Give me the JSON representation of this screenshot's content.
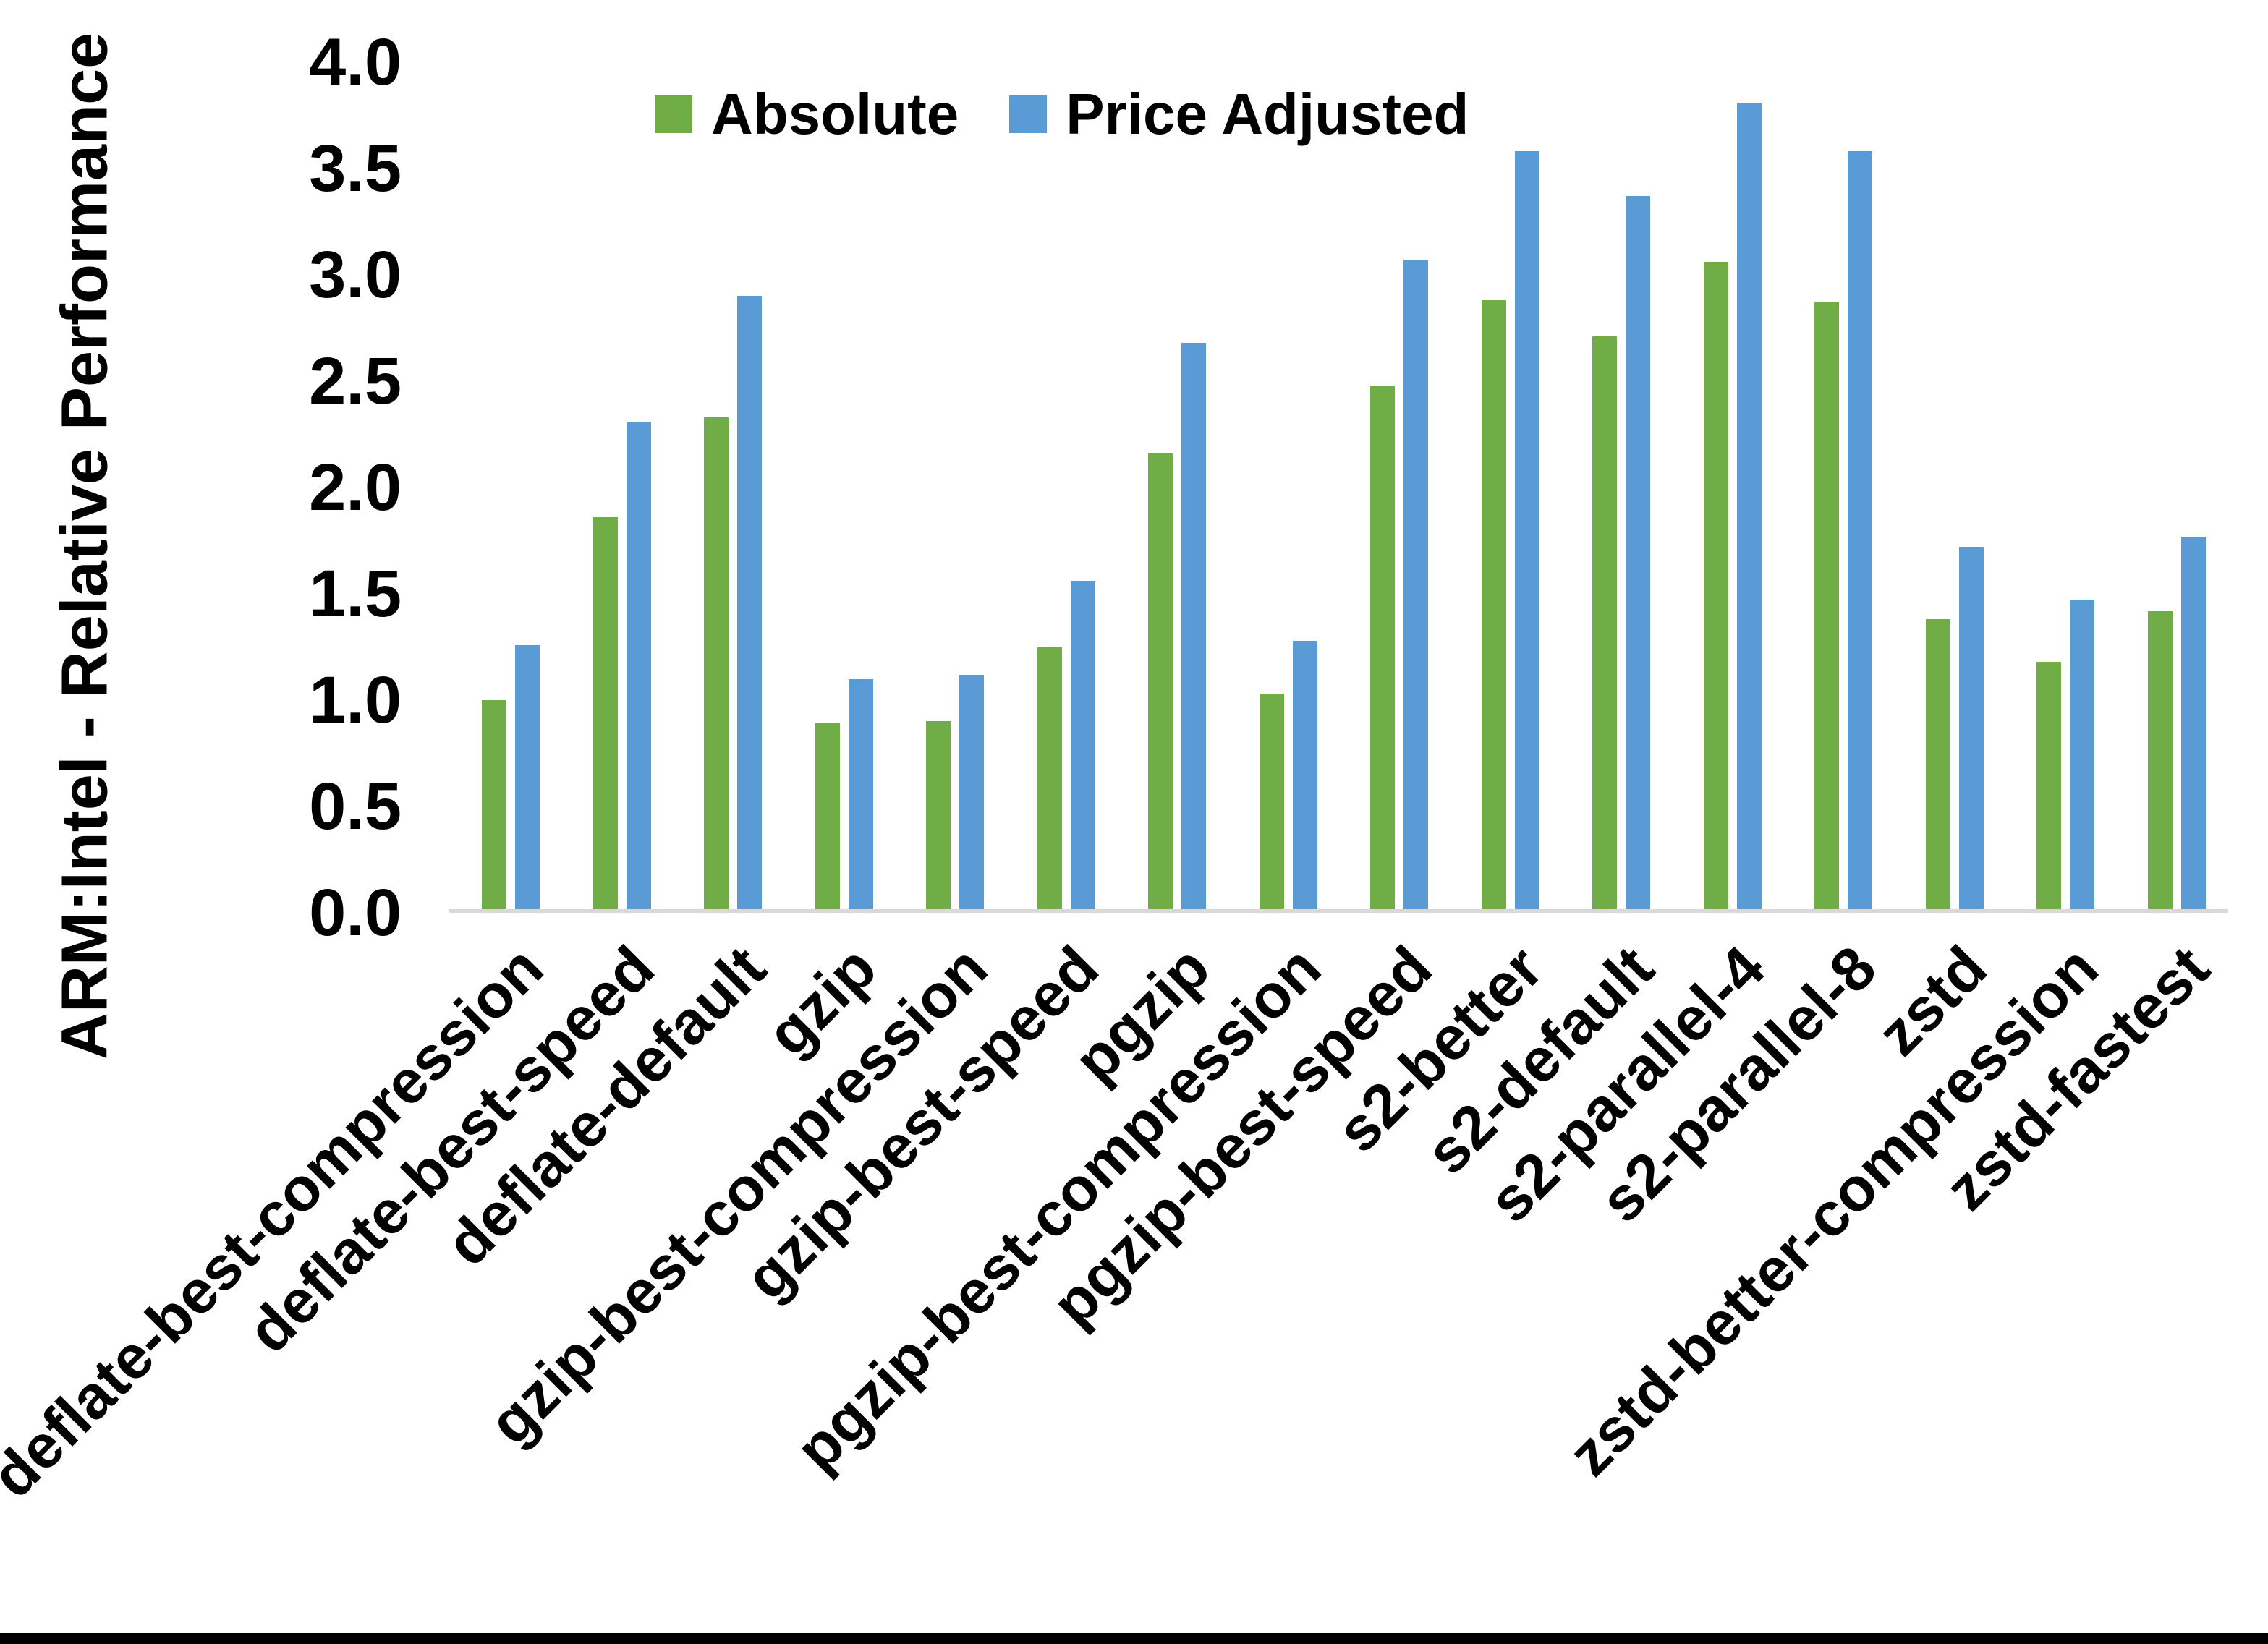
{
  "chart_data": {
    "type": "bar",
    "title": "",
    "xlabel": "",
    "ylabel": "ARM:Intel - Relative Performance",
    "ylim": [
      0,
      4
    ],
    "y_tick_step": 0.5,
    "y_ticks": [
      "4.0",
      "3.5",
      "3.0",
      "2.5",
      "2.0",
      "1.5",
      "1.0",
      "0.5",
      "0.0"
    ],
    "grid": "off",
    "legend_position": "top-center",
    "categories": [
      "deflate-best-compression",
      "deflate-best-speed",
      "deflate-default",
      "gzip",
      "gzip-best-compression",
      "gzip-best-speed",
      "pgzip",
      "pgzip-best-compression",
      "pgzip-best-speed",
      "s2-better",
      "s2-default",
      "s2-parallel-4",
      "s2-parallel-8",
      "zstd",
      "zstd-better-compression",
      "zstd-fastest"
    ],
    "series": [
      {
        "name": "Absolute",
        "color": "#70AD47",
        "values": [
          1.0,
          1.86,
          2.33,
          0.89,
          0.9,
          1.25,
          2.16,
          1.03,
          2.48,
          2.88,
          2.71,
          3.06,
          2.87,
          1.38,
          1.18,
          1.42
        ]
      },
      {
        "name": "Price Adjusted",
        "color": "#5B9BD5",
        "values": [
          1.26,
          2.31,
          2.9,
          1.1,
          1.12,
          1.56,
          2.68,
          1.28,
          3.07,
          3.58,
          3.37,
          3.81,
          3.58,
          1.72,
          1.47,
          1.77
        ]
      }
    ]
  },
  "colors": {
    "background": "#FFFFFF",
    "axis_line": "#D9D9D9",
    "text": "#000000",
    "bottom_border": "#000000"
  }
}
